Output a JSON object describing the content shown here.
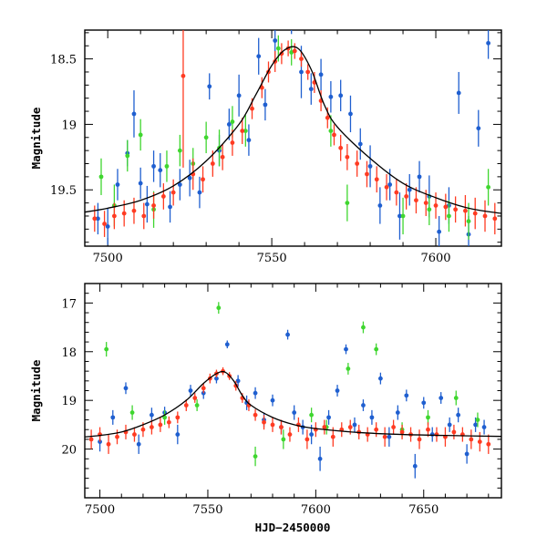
{
  "chart_data": [
    {
      "type": "scatter",
      "title": "",
      "xlabel": "",
      "ylabel": "Magnitude",
      "xlim": [
        7493,
        7620
      ],
      "ylim": [
        19.93,
        18.28
      ],
      "y_inverted": true,
      "grid": false,
      "xticks": [
        7500,
        7550,
        7600
      ],
      "xtick_labels": [
        "7500",
        "7550",
        "7600"
      ],
      "yticks": [
        18.5,
        19,
        19.5
      ],
      "ytick_labels": [
        "18.5",
        "19",
        "19.5"
      ],
      "colors": {
        "blue": "#1f5fd0",
        "green": "#3fd62f",
        "red": "#ff3b22",
        "model": "#000000"
      },
      "model_curve": {
        "x": [
          7493,
          7500,
          7510,
          7520,
          7530,
          7540,
          7545,
          7550,
          7554,
          7558,
          7562,
          7566,
          7570,
          7580,
          7590,
          7600,
          7610,
          7620
        ],
        "y": [
          19.67,
          19.64,
          19.58,
          19.47,
          19.28,
          19.0,
          18.78,
          18.55,
          18.43,
          18.42,
          18.58,
          18.85,
          19.02,
          19.26,
          19.45,
          19.56,
          19.64,
          19.68
        ]
      },
      "series": [
        {
          "color": "blue",
          "x": [
            7497,
            7500,
            7503,
            7506,
            7508,
            7510,
            7512,
            7514,
            7516,
            7519,
            7522,
            7525,
            7528,
            7531,
            7534,
            7537,
            7540,
            7543,
            7546,
            7548,
            7551,
            7556,
            7559,
            7562,
            7565,
            7568,
            7571,
            7574,
            7577,
            7580,
            7583,
            7586,
            7589,
            7592,
            7595,
            7598,
            7601,
            7604,
            7607,
            7610,
            7613,
            7616
          ],
          "y": [
            19.72,
            19.78,
            19.46,
            19.22,
            18.92,
            19.45,
            19.61,
            19.32,
            19.35,
            19.63,
            19.46,
            19.41,
            19.52,
            18.71,
            19.2,
            19.0,
            18.78,
            19.12,
            18.48,
            18.85,
            18.36,
            18.21,
            18.6,
            18.73,
            18.62,
            18.79,
            18.78,
            18.92,
            19.15,
            19.32,
            19.62,
            19.46,
            19.7,
            19.5,
            19.4,
            19.55,
            19.82,
            19.62,
            18.76,
            19.84,
            19.03,
            18.38
          ],
          "err": [
            0.12,
            0.14,
            0.12,
            0.1,
            0.18,
            0.12,
            0.14,
            0.12,
            0.13,
            0.12,
            0.12,
            0.14,
            0.12,
            0.1,
            0.12,
            0.12,
            0.16,
            0.12,
            0.14,
            0.12,
            0.18,
            0.1,
            0.2,
            0.12,
            0.12,
            0.12,
            0.12,
            0.14,
            0.12,
            0.16,
            0.14,
            0.12,
            0.18,
            0.12,
            0.12,
            0.16,
            0.12,
            0.14,
            0.16,
            0.14,
            0.14,
            0.12
          ]
        },
        {
          "color": "green",
          "x": [
            7498,
            7502,
            7506,
            7510,
            7514,
            7518,
            7522,
            7526,
            7530,
            7534,
            7538,
            7542,
            7552,
            7556,
            7568,
            7573,
            7590,
            7598,
            7604,
            7610,
            7616
          ],
          "y": [
            19.4,
            19.62,
            19.24,
            19.08,
            19.65,
            19.32,
            19.2,
            19.3,
            19.1,
            19.18,
            18.98,
            19.05,
            18.42,
            18.45,
            19.05,
            19.6,
            19.7,
            19.65,
            19.7,
            19.74,
            19.48
          ],
          "err": [
            0.14,
            0.16,
            0.12,
            0.12,
            0.14,
            0.12,
            0.12,
            0.12,
            0.12,
            0.14,
            0.12,
            0.12,
            0.1,
            0.1,
            0.12,
            0.14,
            0.14,
            0.12,
            0.12,
            0.14,
            0.14
          ]
        },
        {
          "color": "red",
          "x": [
            7496,
            7499,
            7502,
            7505,
            7508,
            7511,
            7514,
            7517,
            7520,
            7523,
            7526,
            7529,
            7532,
            7535,
            7538,
            7541,
            7544,
            7547,
            7549,
            7551,
            7553,
            7555,
            7557,
            7559,
            7561,
            7563,
            7565,
            7567,
            7569,
            7571,
            7573,
            7576,
            7579,
            7582,
            7585,
            7588,
            7591,
            7594,
            7597,
            7600,
            7603,
            7606,
            7609,
            7612,
            7615,
            7618
          ],
          "y": [
            19.72,
            19.76,
            19.7,
            19.68,
            19.66,
            19.7,
            19.62,
            19.55,
            19.52,
            18.63,
            19.38,
            19.42,
            19.3,
            19.25,
            19.14,
            19.05,
            18.88,
            18.72,
            18.6,
            18.52,
            18.46,
            18.42,
            18.44,
            18.5,
            18.6,
            18.68,
            18.82,
            18.95,
            19.08,
            19.18,
            19.25,
            19.3,
            19.38,
            19.42,
            19.48,
            19.52,
            19.55,
            19.58,
            19.6,
            19.62,
            19.63,
            19.65,
            19.66,
            19.68,
            19.7,
            19.72
          ],
          "err": [
            0.1,
            0.1,
            0.1,
            0.1,
            0.1,
            0.1,
            0.1,
            0.1,
            0.1,
            0.7,
            0.12,
            0.1,
            0.1,
            0.1,
            0.1,
            0.1,
            0.08,
            0.08,
            0.08,
            0.08,
            0.08,
            0.06,
            0.06,
            0.06,
            0.06,
            0.08,
            0.08,
            0.08,
            0.08,
            0.1,
            0.1,
            0.1,
            0.1,
            0.1,
            0.1,
            0.1,
            0.1,
            0.1,
            0.1,
            0.1,
            0.1,
            0.1,
            0.12,
            0.12,
            0.12,
            0.12
          ]
        }
      ]
    },
    {
      "type": "scatter",
      "title": "",
      "xlabel": "HJD−2450000",
      "ylabel": "Magnitude",
      "xlim": [
        7493,
        7686
      ],
      "ylim": [
        21.0,
        16.6
      ],
      "y_inverted": true,
      "grid": false,
      "xticks": [
        7500,
        7550,
        7600,
        7650
      ],
      "xtick_labels": [
        "7500",
        "7550",
        "7600",
        "7650"
      ],
      "yticks": [
        17,
        18,
        19,
        20
      ],
      "ytick_labels": [
        "17",
        "18",
        "19",
        "20"
      ],
      "colors": {
        "blue": "#1f5fd0",
        "green": "#3fd62f",
        "red": "#ff3b22",
        "model": "#000000"
      },
      "model_curve": {
        "x": [
          7493,
          7500,
          7510,
          7520,
          7530,
          7540,
          7548,
          7554,
          7558,
          7562,
          7566,
          7570,
          7580,
          7590,
          7600,
          7620,
          7640,
          7660,
          7686
        ],
        "y": [
          19.75,
          19.72,
          19.65,
          19.5,
          19.3,
          19.0,
          18.65,
          18.45,
          18.42,
          18.6,
          18.9,
          19.1,
          19.35,
          19.5,
          19.58,
          19.66,
          19.7,
          19.72,
          19.74
        ]
      },
      "series": [
        {
          "color": "blue",
          "x": [
            7500,
            7506,
            7512,
            7518,
            7524,
            7530,
            7536,
            7542,
            7548,
            7554,
            7559,
            7564,
            7568,
            7572,
            7576,
            7580,
            7584,
            7587,
            7590,
            7594,
            7598,
            7602,
            7606,
            7610,
            7614,
            7618,
            7622,
            7626,
            7630,
            7634,
            7638,
            7642,
            7646,
            7650,
            7654,
            7658,
            7662,
            7666,
            7670,
            7674,
            7678
          ],
          "y": [
            19.85,
            19.35,
            18.75,
            19.9,
            19.3,
            19.25,
            19.7,
            18.8,
            18.85,
            18.55,
            17.85,
            18.6,
            19.05,
            18.85,
            19.4,
            19.0,
            19.55,
            17.65,
            19.25,
            19.55,
            19.7,
            20.2,
            19.35,
            18.8,
            17.95,
            19.5,
            19.1,
            19.35,
            18.55,
            19.75,
            19.25,
            18.9,
            20.35,
            19.05,
            19.7,
            18.95,
            19.5,
            19.3,
            20.1,
            19.5,
            19.55
          ],
          "err": [
            0.2,
            0.15,
            0.12,
            0.2,
            0.15,
            0.12,
            0.2,
            0.12,
            0.12,
            0.1,
            0.08,
            0.12,
            0.15,
            0.12,
            0.15,
            0.12,
            0.15,
            0.1,
            0.15,
            0.15,
            0.2,
            0.25,
            0.15,
            0.12,
            0.1,
            0.15,
            0.12,
            0.15,
            0.12,
            0.2,
            0.15,
            0.12,
            0.25,
            0.12,
            0.15,
            0.12,
            0.15,
            0.15,
            0.2,
            0.15,
            0.15
          ]
        },
        {
          "color": "green",
          "x": [
            7503,
            7515,
            7530,
            7545,
            7555,
            7572,
            7585,
            7598,
            7605,
            7615,
            7622,
            7628,
            7640,
            7652,
            7665,
            7675
          ],
          "y": [
            17.95,
            19.25,
            19.35,
            19.1,
            17.1,
            20.15,
            19.8,
            19.3,
            19.55,
            18.35,
            17.5,
            17.95,
            19.6,
            19.35,
            18.95,
            19.4
          ],
          "err": [
            0.15,
            0.15,
            0.15,
            0.12,
            0.12,
            0.2,
            0.2,
            0.15,
            0.15,
            0.12,
            0.12,
            0.12,
            0.15,
            0.15,
            0.15,
            0.15
          ]
        },
        {
          "color": "red",
          "x": [
            7496,
            7500,
            7504,
            7508,
            7512,
            7516,
            7520,
            7524,
            7528,
            7532,
            7536,
            7540,
            7544,
            7548,
            7551,
            7554,
            7557,
            7560,
            7563,
            7566,
            7569,
            7572,
            7576,
            7580,
            7584,
            7588,
            7592,
            7596,
            7600,
            7604,
            7608,
            7612,
            7616,
            7620,
            7624,
            7628,
            7632,
            7636,
            7640,
            7644,
            7648,
            7652,
            7656,
            7660,
            7664,
            7668,
            7672,
            7676,
            7680
          ],
          "y": [
            19.8,
            19.7,
            19.9,
            19.75,
            19.65,
            19.7,
            19.6,
            19.55,
            19.5,
            19.45,
            19.35,
            19.1,
            18.95,
            18.75,
            18.55,
            18.45,
            18.4,
            18.5,
            18.7,
            18.95,
            19.1,
            19.3,
            19.45,
            19.5,
            19.55,
            19.7,
            19.5,
            19.8,
            19.6,
            19.55,
            19.75,
            19.6,
            19.55,
            19.65,
            19.7,
            19.6,
            19.75,
            19.55,
            19.65,
            19.7,
            19.8,
            19.6,
            19.7,
            19.75,
            19.65,
            19.7,
            19.8,
            19.85,
            19.9
          ],
          "err": [
            0.2,
            0.15,
            0.2,
            0.15,
            0.15,
            0.15,
            0.15,
            0.15,
            0.15,
            0.12,
            0.12,
            0.12,
            0.1,
            0.1,
            0.1,
            0.08,
            0.08,
            0.08,
            0.1,
            0.1,
            0.12,
            0.12,
            0.15,
            0.15,
            0.15,
            0.15,
            0.15,
            0.2,
            0.15,
            0.15,
            0.2,
            0.15,
            0.15,
            0.15,
            0.15,
            0.15,
            0.2,
            0.15,
            0.15,
            0.15,
            0.2,
            0.15,
            0.15,
            0.2,
            0.15,
            0.15,
            0.2,
            0.2,
            0.2
          ]
        }
      ]
    }
  ]
}
